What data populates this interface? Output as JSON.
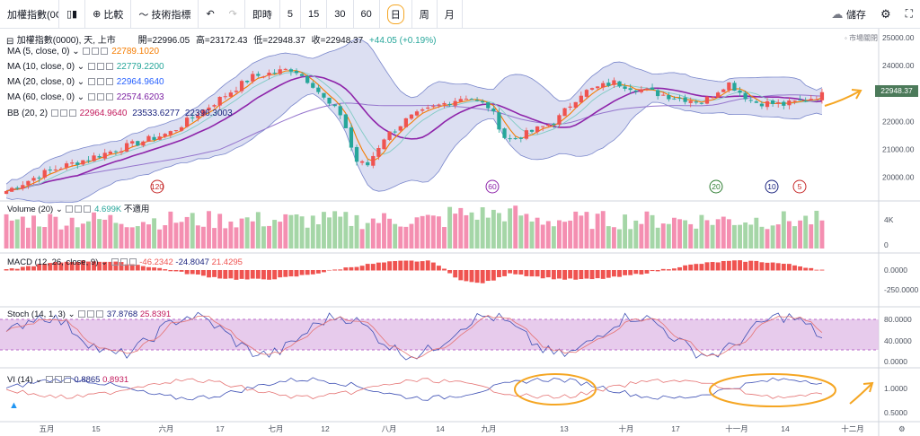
{
  "toolbar": {
    "symbol": "加權指數(0C",
    "compare": "比較",
    "indicators": "技術指標",
    "intervals": [
      "即時",
      "5",
      "15",
      "30",
      "60",
      "日",
      "周",
      "月"
    ],
    "active_interval": "日",
    "save": "儲存"
  },
  "header": {
    "name": "加權指數(0000), 天, 上市",
    "open_label": "開=",
    "open": "22996.05",
    "high_label": "高=",
    "high": "23172.43",
    "low_label": "低=",
    "low": "22948.37",
    "close_label": "收=",
    "close": "22948.37",
    "change": "+44.05 (+0.19%)",
    "market_status": "市場關閉"
  },
  "ma": [
    {
      "label": "MA (5, close, 0)",
      "value": "22789.1020",
      "color": "#f57c00"
    },
    {
      "label": "MA (10, close, 0)",
      "value": "22779.2200",
      "color": "#26a69a"
    },
    {
      "label": "MA (20, close, 0)",
      "value": "22964.9640",
      "color": "#2962ff"
    },
    {
      "label": "MA (60, close, 0)",
      "value": "22574.6203",
      "color": "#7b1fa2"
    }
  ],
  "bb": {
    "label": "BB (20, 2)",
    "basis": "22964.9640",
    "upper": "23533.6277",
    "lower": "22396.3003"
  },
  "price_axis": [
    "25000.00",
    "24000.00",
    "23000.00",
    "22000.00",
    "21000.00",
    "20000.00"
  ],
  "last_price": "22948.37",
  "markers": [
    "120",
    "60",
    "20",
    "10",
    "5"
  ],
  "volume": {
    "label": "Volume (20)",
    "value": "4.699K",
    "na": "不適用",
    "axis": [
      "4K",
      "0"
    ]
  },
  "macd": {
    "label": "MACD (12, 26, close, 9)",
    "v1": "-46.2342",
    "v2": "-24.8047",
    "v3": "21.4295",
    "axis": [
      "0.0000",
      "-250.0000"
    ]
  },
  "stoch": {
    "label": "Stoch (14, 1, 3)",
    "v1": "37.8768",
    "v2": "25.8391",
    "axis": [
      "80.0000",
      "40.0000",
      "0.0000"
    ]
  },
  "vi": {
    "label": "VI (14)",
    "v1": "0.8865",
    "v2": "0.8931",
    "axis": [
      "1.0000",
      "0.5000"
    ]
  },
  "time_axis": [
    "五月",
    "15",
    "六月",
    "17",
    "七月",
    "12",
    "八月",
    "14",
    "九月",
    "13",
    "十月",
    "17",
    "十一月",
    "14",
    "十二月"
  ],
  "colors": {
    "up": "#ef5350",
    "down": "#26a69a",
    "bb_fill": "#c5cae9",
    "stoch_fill": "#e1bee7",
    "annotation": "#f5a623"
  }
}
